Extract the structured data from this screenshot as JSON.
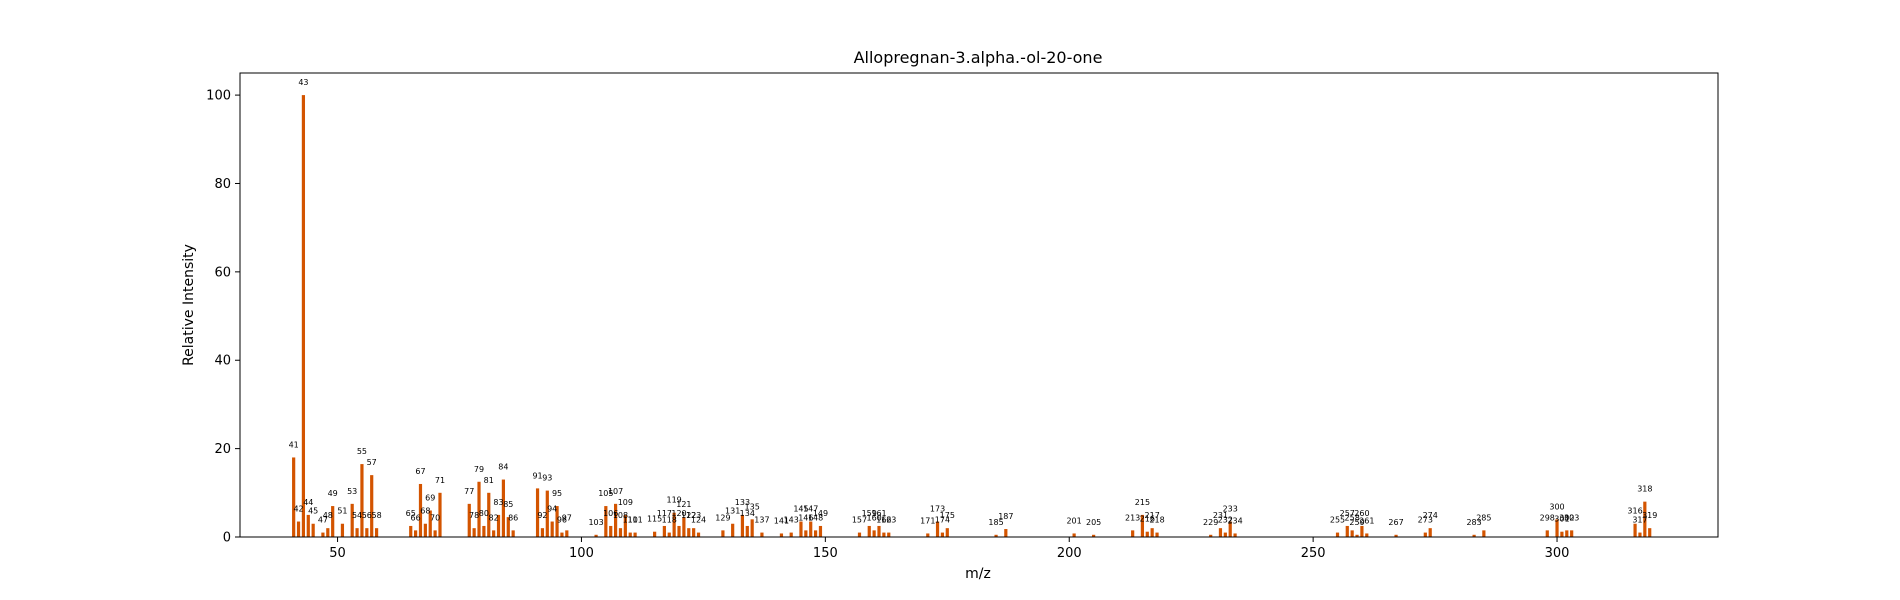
{
  "chart_data": {
    "type": "bar",
    "title": "Allopregnan-3.alpha.-ol-20-one",
    "xlabel": "m/z",
    "ylabel": "Relative Intensity",
    "xlim": [
      30,
      333
    ],
    "ylim": [
      0,
      105
    ],
    "xticks": [
      50,
      100,
      150,
      200,
      250,
      300
    ],
    "yticks": [
      0,
      20,
      40,
      60,
      80,
      100
    ],
    "bar_color": "#d35400",
    "grid": false,
    "peaks": [
      {
        "mz": 41,
        "intensity": 18
      },
      {
        "mz": 42,
        "intensity": 3.5
      },
      {
        "mz": 43,
        "intensity": 100
      },
      {
        "mz": 44,
        "intensity": 5
      },
      {
        "mz": 45,
        "intensity": 3
      },
      {
        "mz": 47,
        "intensity": 1
      },
      {
        "mz": 48,
        "intensity": 2
      },
      {
        "mz": 49,
        "intensity": 7
      },
      {
        "mz": 51,
        "intensity": 3
      },
      {
        "mz": 53,
        "intensity": 7.5
      },
      {
        "mz": 54,
        "intensity": 2
      },
      {
        "mz": 55,
        "intensity": 16.5
      },
      {
        "mz": 56,
        "intensity": 2
      },
      {
        "mz": 57,
        "intensity": 14
      },
      {
        "mz": 58,
        "intensity": 2
      },
      {
        "mz": 65,
        "intensity": 2.5
      },
      {
        "mz": 66,
        "intensity": 1.5
      },
      {
        "mz": 67,
        "intensity": 12
      },
      {
        "mz": 68,
        "intensity": 3
      },
      {
        "mz": 69,
        "intensity": 6
      },
      {
        "mz": 70,
        "intensity": 1.5
      },
      {
        "mz": 71,
        "intensity": 10
      },
      {
        "mz": 77,
        "intensity": 7.5
      },
      {
        "mz": 78,
        "intensity": 2
      },
      {
        "mz": 79,
        "intensity": 12.5
      },
      {
        "mz": 80,
        "intensity": 2.5
      },
      {
        "mz": 81,
        "intensity": 10
      },
      {
        "mz": 82,
        "intensity": 1.5
      },
      {
        "mz": 83,
        "intensity": 5
      },
      {
        "mz": 84,
        "intensity": 13
      },
      {
        "mz": 85,
        "intensity": 4.5
      },
      {
        "mz": 86,
        "intensity": 1.5
      },
      {
        "mz": 91,
        "intensity": 11
      },
      {
        "mz": 92,
        "intensity": 2
      },
      {
        "mz": 93,
        "intensity": 10.5
      },
      {
        "mz": 94,
        "intensity": 3.5
      },
      {
        "mz": 95,
        "intensity": 7
      },
      {
        "mz": 96,
        "intensity": 1
      },
      {
        "mz": 97,
        "intensity": 1.5
      },
      {
        "mz": 103,
        "intensity": 0.5
      },
      {
        "mz": 105,
        "intensity": 7
      },
      {
        "mz": 106,
        "intensity": 2.5
      },
      {
        "mz": 107,
        "intensity": 7.5
      },
      {
        "mz": 108,
        "intensity": 2
      },
      {
        "mz": 109,
        "intensity": 5
      },
      {
        "mz": 110,
        "intensity": 1
      },
      {
        "mz": 111,
        "intensity": 1
      },
      {
        "mz": 115,
        "intensity": 1.2
      },
      {
        "mz": 117,
        "intensity": 2.5
      },
      {
        "mz": 118,
        "intensity": 1
      },
      {
        "mz": 119,
        "intensity": 5.5
      },
      {
        "mz": 120,
        "intensity": 2.5
      },
      {
        "mz": 121,
        "intensity": 4.5
      },
      {
        "mz": 122,
        "intensity": 2
      },
      {
        "mz": 123,
        "intensity": 2
      },
      {
        "mz": 124,
        "intensity": 1
      },
      {
        "mz": 129,
        "intensity": 1.5
      },
      {
        "mz": 131,
        "intensity": 3
      },
      {
        "mz": 133,
        "intensity": 5
      },
      {
        "mz": 134,
        "intensity": 2.5
      },
      {
        "mz": 135,
        "intensity": 4
      },
      {
        "mz": 137,
        "intensity": 1
      },
      {
        "mz": 141,
        "intensity": 0.8
      },
      {
        "mz": 143,
        "intensity": 1
      },
      {
        "mz": 145,
        "intensity": 3.5
      },
      {
        "mz": 146,
        "intensity": 1.5
      },
      {
        "mz": 147,
        "intensity": 3.5
      },
      {
        "mz": 148,
        "intensity": 1.5
      },
      {
        "mz": 149,
        "intensity": 2.5
      },
      {
        "mz": 157,
        "intensity": 1
      },
      {
        "mz": 159,
        "intensity": 2.5
      },
      {
        "mz": 160,
        "intensity": 1.5
      },
      {
        "mz": 161,
        "intensity": 2.5
      },
      {
        "mz": 162,
        "intensity": 1
      },
      {
        "mz": 163,
        "intensity": 1
      },
      {
        "mz": 171,
        "intensity": 0.8
      },
      {
        "mz": 173,
        "intensity": 3.5
      },
      {
        "mz": 174,
        "intensity": 1
      },
      {
        "mz": 175,
        "intensity": 2
      },
      {
        "mz": 185,
        "intensity": 0.5
      },
      {
        "mz": 187,
        "intensity": 1.8
      },
      {
        "mz": 201,
        "intensity": 0.8
      },
      {
        "mz": 205,
        "intensity": 0.5
      },
      {
        "mz": 213,
        "intensity": 1.5
      },
      {
        "mz": 215,
        "intensity": 5
      },
      {
        "mz": 216,
        "intensity": 1.2
      },
      {
        "mz": 217,
        "intensity": 2
      },
      {
        "mz": 218,
        "intensity": 1
      },
      {
        "mz": 229,
        "intensity": 0.5
      },
      {
        "mz": 231,
        "intensity": 2
      },
      {
        "mz": 232,
        "intensity": 1
      },
      {
        "mz": 233,
        "intensity": 3.5
      },
      {
        "mz": 234,
        "intensity": 0.8
      },
      {
        "mz": 255,
        "intensity": 1
      },
      {
        "mz": 257,
        "intensity": 2.5
      },
      {
        "mz": 258,
        "intensity": 1.5
      },
      {
        "mz": 259,
        "intensity": 0.5
      },
      {
        "mz": 260,
        "intensity": 2.5
      },
      {
        "mz": 261,
        "intensity": 0.8
      },
      {
        "mz": 267,
        "intensity": 0.5
      },
      {
        "mz": 273,
        "intensity": 1
      },
      {
        "mz": 274,
        "intensity": 2
      },
      {
        "mz": 283,
        "intensity": 0.5
      },
      {
        "mz": 285,
        "intensity": 1.5
      },
      {
        "mz": 298,
        "intensity": 1.5
      },
      {
        "mz": 300,
        "intensity": 4
      },
      {
        "mz": 301,
        "intensity": 1.2
      },
      {
        "mz": 302,
        "intensity": 1.5
      },
      {
        "mz": 303,
        "intensity": 1.5
      },
      {
        "mz": 316,
        "intensity": 3
      },
      {
        "mz": 317,
        "intensity": 1
      },
      {
        "mz": 318,
        "intensity": 8
      },
      {
        "mz": 319,
        "intensity": 2
      }
    ]
  }
}
